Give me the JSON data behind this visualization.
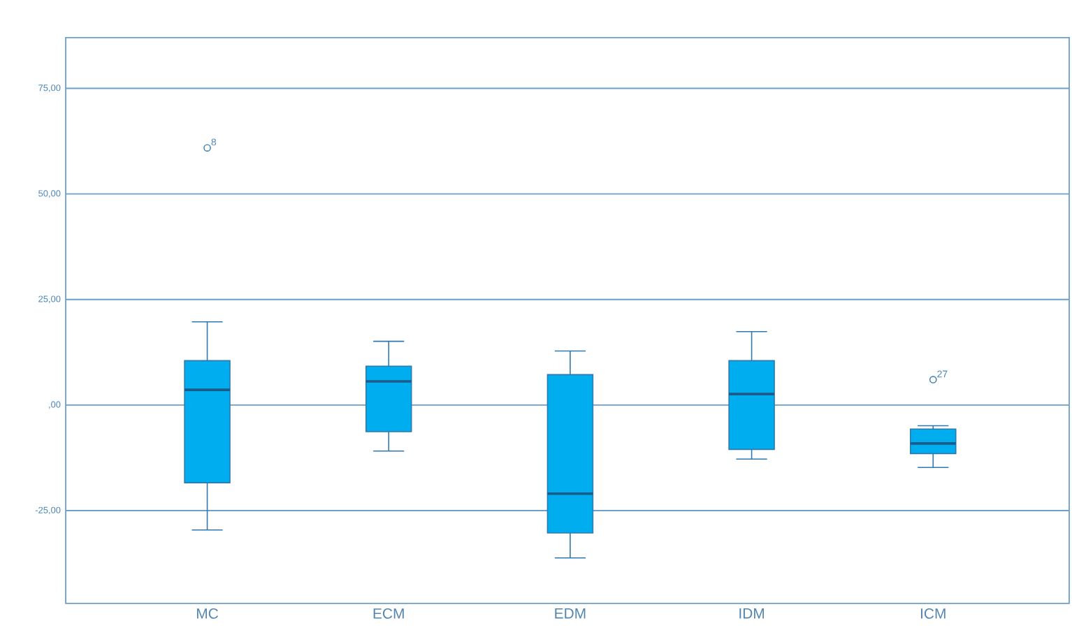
{
  "chart_data": {
    "type": "box",
    "categories": [
      "MC",
      "ECM",
      "EDM",
      "IDM",
      "ICM"
    ],
    "boxes": [
      {
        "low": -29.6,
        "q1": -18.4,
        "median": 3.6,
        "q3": 10.5,
        "high": 19.7,
        "outliers": [
          60.9
        ]
      },
      {
        "low": -10.9,
        "q1": -6.3,
        "median": 5.6,
        "q3": 9.2,
        "high": 15.1
      },
      {
        "low": -36.2,
        "q1": -30.3,
        "median": -21.0,
        "q3": 7.2,
        "high": 12.8
      },
      {
        "low": -12.8,
        "q1": -10.5,
        "median": 2.6,
        "q3": 10.5,
        "high": 17.4
      },
      {
        "low": -14.8,
        "q1": -11.5,
        "median": -9.1,
        "q3": -5.7,
        "high": -4.9,
        "outliers": [
          6.0
        ]
      }
    ],
    "color": "#00aeef",
    "ylim": [
      -47,
      87
    ],
    "yticks": [
      {
        "value": -25,
        "label": "-25,00"
      },
      {
        "value": 0,
        "label": ",00"
      },
      {
        "value": 25,
        "label": "25,00"
      },
      {
        "value": 50,
        "label": "50,00"
      },
      {
        "value": 75,
        "label": "75,00"
      }
    ],
    "grid": "y",
    "annotations": [
      "8",
      "27"
    ]
  }
}
